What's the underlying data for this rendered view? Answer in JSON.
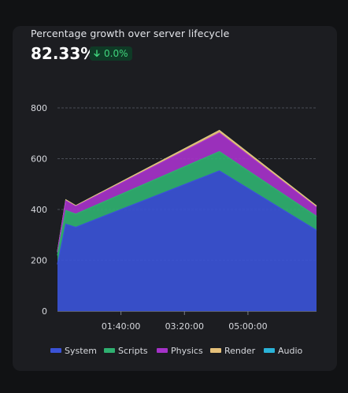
{
  "header": {
    "title": "Percentage growth over server lifecycle",
    "metric": "82.33%",
    "change": "0.0%",
    "change_icon": "arrow-down-icon"
  },
  "colors": {
    "System": "#3a52d6",
    "Scripts": "#2fb070",
    "Physics": "#a532c9",
    "Render": "#e5c07a",
    "Audio": "#2ab3d8",
    "badge_text": "#41d67d",
    "badge_bg": "#0f3a26"
  },
  "chart_data": {
    "type": "area",
    "stacked": true,
    "x": [
      0,
      0.22,
      0.48,
      4.25,
      6.8
    ],
    "x_unit": "hours",
    "xticks": [
      {
        "v": 1.6667,
        "label": "01:40:00"
      },
      {
        "v": 3.3333,
        "label": "03:20:00"
      },
      {
        "v": 5.0,
        "label": "05:00:00"
      }
    ],
    "ylim": [
      0,
      800
    ],
    "yticks": [
      0,
      200,
      400,
      600,
      800
    ],
    "grid": true,
    "legend_position": "bottom",
    "series": [
      {
        "name": "System",
        "values": [
          184,
          342,
          330,
          552,
          318
        ]
      },
      {
        "name": "Scripts",
        "values": [
          35,
          54,
          52,
          76,
          55
        ]
      },
      {
        "name": "Physics",
        "values": [
          12,
          38,
          30,
          73,
          35
        ]
      },
      {
        "name": "Render",
        "values": [
          2,
          4,
          3,
          10,
          6
        ]
      },
      {
        "name": "Audio",
        "values": [
          0,
          0,
          0,
          0,
          0
        ]
      }
    ]
  }
}
